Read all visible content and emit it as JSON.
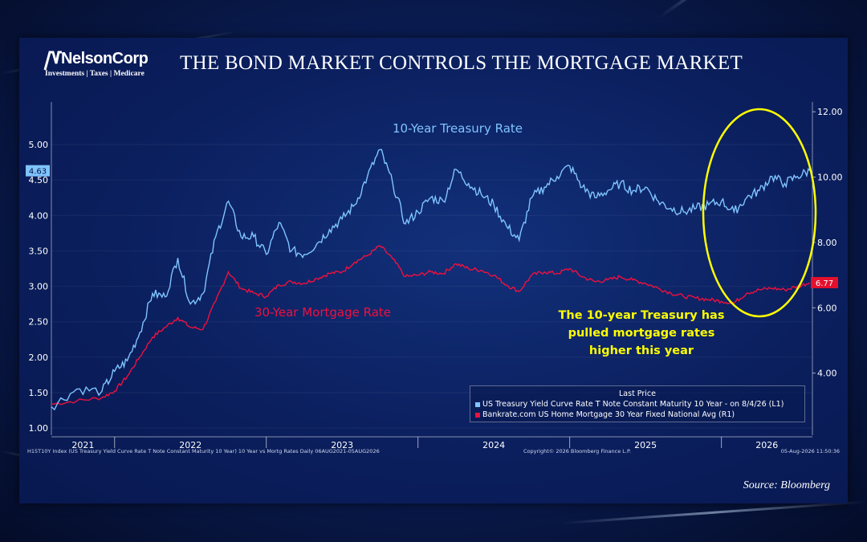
{
  "header": {
    "logo_name": "NelsonCorp",
    "logo_tagline": "Investments | Taxes | Medicare",
    "title": "THE BOND MARKET CONTROLS THE MORTGAGE MARKET"
  },
  "footer": {
    "source": "Source: Bloomberg",
    "index_note": "H15T10Y Index (US Treasury Yield Curve Rate T Note Constant Maturity 10 Year) 10 Year vs Mortg Rates Daily 06AUG2021-05AUG2026",
    "copyright": "Copyright© 2026 Bloomberg Finance L.P.",
    "timestamp": "05-Aug-2026 11:50:36"
  },
  "colors": {
    "treasury": "#7fc4ff",
    "mortgage": "#f0103e",
    "highlight": "#ffff00"
  },
  "chart_data": {
    "type": "line",
    "x_ticks": [
      "2021",
      "2022",
      "2023",
      "2024",
      "2025",
      "2026"
    ],
    "y_left": {
      "ticks": [
        "1.00",
        "1.50",
        "2.00",
        "2.50",
        "3.00",
        "3.50",
        "4.00",
        "4.50",
        "5.00"
      ],
      "range": [
        0.9,
        5.6
      ]
    },
    "y_right": {
      "ticks": [
        "4.00",
        "6.00",
        "8.00",
        "10.00",
        "12.00"
      ],
      "range": [
        2.1,
        12.3
      ]
    },
    "series": [
      {
        "name": "10-Year Treasury Rate",
        "legend": "US Treasury Yield Curve Rate T Note Constant Maturity 10 Year -  on 8/4/26  (L1)",
        "axis": "left",
        "last_value": "4.63",
        "points": [
          [
            "2021-08",
            1.3
          ],
          [
            "2021-10",
            1.55
          ],
          [
            "2021-12",
            1.52
          ],
          [
            "2022-01",
            1.8
          ],
          [
            "2022-02",
            1.95
          ],
          [
            "2022-03",
            2.35
          ],
          [
            "2022-04",
            2.9
          ],
          [
            "2022-05",
            2.85
          ],
          [
            "2022-06",
            3.4
          ],
          [
            "2022-07",
            2.75
          ],
          [
            "2022-08",
            2.9
          ],
          [
            "2022-09",
            3.7
          ],
          [
            "2022-10",
            4.2
          ],
          [
            "2022-11",
            3.7
          ],
          [
            "2022-12",
            3.7
          ],
          [
            "2023-01",
            3.45
          ],
          [
            "2023-02",
            3.9
          ],
          [
            "2023-03",
            3.5
          ],
          [
            "2023-04",
            3.45
          ],
          [
            "2023-05",
            3.6
          ],
          [
            "2023-06",
            3.8
          ],
          [
            "2023-07",
            3.95
          ],
          [
            "2023-08",
            4.15
          ],
          [
            "2023-09",
            4.55
          ],
          [
            "2023-10",
            4.93
          ],
          [
            "2023-11",
            4.45
          ],
          [
            "2023-12",
            3.88
          ],
          [
            "2024-01",
            4.05
          ],
          [
            "2024-02",
            4.25
          ],
          [
            "2024-03",
            4.2
          ],
          [
            "2024-04",
            4.65
          ],
          [
            "2024-05",
            4.45
          ],
          [
            "2024-06",
            4.3
          ],
          [
            "2024-07",
            4.15
          ],
          [
            "2024-08",
            3.85
          ],
          [
            "2024-09",
            3.65
          ],
          [
            "2024-10",
            4.25
          ],
          [
            "2024-11",
            4.4
          ],
          [
            "2024-12",
            4.55
          ],
          [
            "2025-01",
            4.7
          ],
          [
            "2025-02",
            4.4
          ],
          [
            "2025-03",
            4.25
          ],
          [
            "2025-04",
            4.35
          ],
          [
            "2025-05",
            4.45
          ],
          [
            "2025-06",
            4.35
          ],
          [
            "2025-07",
            4.4
          ],
          [
            "2025-08",
            4.2
          ],
          [
            "2025-09",
            4.1
          ],
          [
            "2025-10",
            4.05
          ],
          [
            "2025-11",
            4.1
          ],
          [
            "2025-12",
            4.15
          ],
          [
            "2026-01",
            4.2
          ],
          [
            "2026-02",
            4.05
          ],
          [
            "2026-03",
            4.25
          ],
          [
            "2026-04",
            4.35
          ],
          [
            "2026-05",
            4.55
          ],
          [
            "2026-06",
            4.45
          ],
          [
            "2026-07",
            4.55
          ],
          [
            "2026-08",
            4.63
          ]
        ]
      },
      {
        "name": "30-Year Mortgage Rate",
        "legend": "Bankrate.com US Home Mortgage 30 Year Fixed National Avg  (R1)",
        "axis": "right",
        "last_value": "6.77",
        "points": [
          [
            "2021-08",
            3.05
          ],
          [
            "2021-10",
            3.15
          ],
          [
            "2021-12",
            3.25
          ],
          [
            "2022-01",
            3.45
          ],
          [
            "2022-02",
            3.9
          ],
          [
            "2022-03",
            4.5
          ],
          [
            "2022-04",
            5.1
          ],
          [
            "2022-05",
            5.4
          ],
          [
            "2022-06",
            5.7
          ],
          [
            "2022-07",
            5.4
          ],
          [
            "2022-08",
            5.35
          ],
          [
            "2022-09",
            6.2
          ],
          [
            "2022-10",
            7.1
          ],
          [
            "2022-11",
            6.6
          ],
          [
            "2022-12",
            6.45
          ],
          [
            "2023-01",
            6.35
          ],
          [
            "2023-02",
            6.7
          ],
          [
            "2023-03",
            6.8
          ],
          [
            "2023-04",
            6.75
          ],
          [
            "2023-05",
            6.9
          ],
          [
            "2023-06",
            7.05
          ],
          [
            "2023-07",
            7.1
          ],
          [
            "2023-08",
            7.4
          ],
          [
            "2023-09",
            7.6
          ],
          [
            "2023-10",
            7.9
          ],
          [
            "2023-11",
            7.5
          ],
          [
            "2023-12",
            6.95
          ],
          [
            "2024-01",
            7.0
          ],
          [
            "2024-02",
            7.1
          ],
          [
            "2024-03",
            7.05
          ],
          [
            "2024-04",
            7.35
          ],
          [
            "2024-05",
            7.2
          ],
          [
            "2024-06",
            7.15
          ],
          [
            "2024-07",
            7.0
          ],
          [
            "2024-08",
            6.7
          ],
          [
            "2024-09",
            6.5
          ],
          [
            "2024-10",
            7.0
          ],
          [
            "2024-11",
            7.1
          ],
          [
            "2024-12",
            7.05
          ],
          [
            "2025-01",
            7.2
          ],
          [
            "2025-02",
            6.95
          ],
          [
            "2025-03",
            6.8
          ],
          [
            "2025-04",
            6.85
          ],
          [
            "2025-05",
            6.95
          ],
          [
            "2025-06",
            6.85
          ],
          [
            "2025-07",
            6.75
          ],
          [
            "2025-08",
            6.6
          ],
          [
            "2025-09",
            6.45
          ],
          [
            "2025-10",
            6.35
          ],
          [
            "2025-11",
            6.3
          ],
          [
            "2025-12",
            6.25
          ],
          [
            "2026-01",
            6.2
          ],
          [
            "2026-02",
            6.15
          ],
          [
            "2026-03",
            6.45
          ],
          [
            "2026-04",
            6.55
          ],
          [
            "2026-05",
            6.6
          ],
          [
            "2026-06",
            6.55
          ],
          [
            "2026-07",
            6.65
          ],
          [
            "2026-08",
            6.77
          ]
        ]
      }
    ],
    "legend": {
      "title": "Last Price",
      "placement": "bottom-right"
    },
    "annotation": {
      "text_lines": [
        "The 10-year Treasury has",
        "pulled mortgage rates",
        "higher this year"
      ],
      "highlight": "circle around 2026 data"
    },
    "grid": false
  }
}
